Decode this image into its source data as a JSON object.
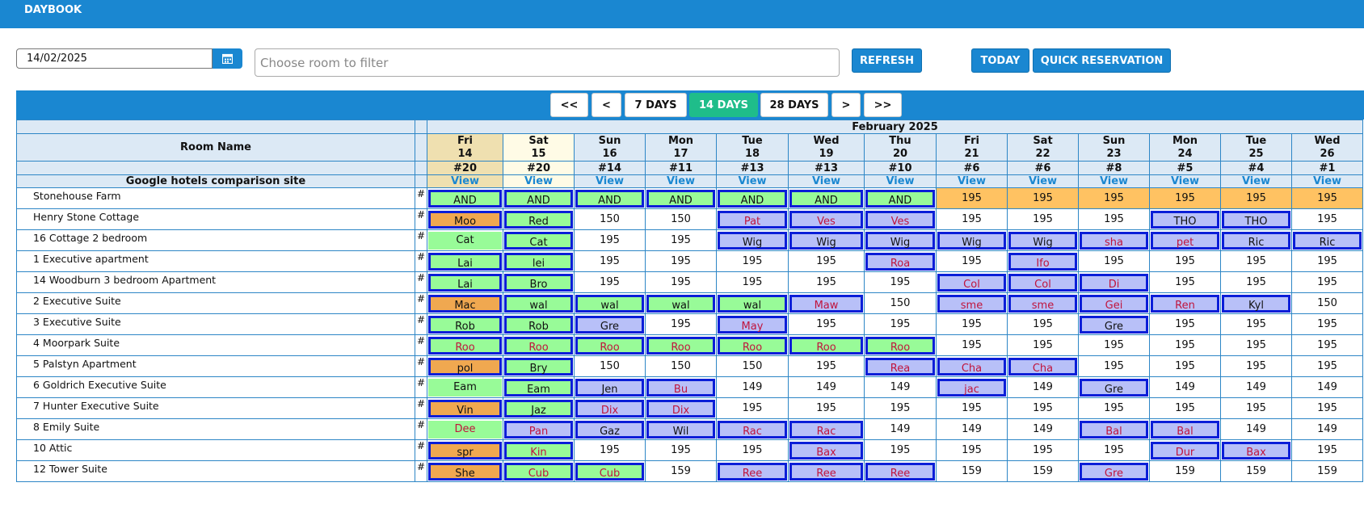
{
  "header": {
    "title": "DAYBOOK"
  },
  "toolbar": {
    "date_value": "14/02/2025",
    "room_filter_placeholder": "Choose room to filter",
    "refresh_label": "REFRESH",
    "today_label": "TODAY",
    "quick_reservation_label": "QUICK RESERVATION"
  },
  "nav": [
    {
      "label": "<<",
      "active": false
    },
    {
      "label": "<",
      "active": false
    },
    {
      "label": "7 DAYS",
      "active": false
    },
    {
      "label": "14 DAYS",
      "active": true
    },
    {
      "label": "28 DAYS",
      "active": false
    },
    {
      "label": ">",
      "active": false
    },
    {
      "label": ">>",
      "active": false
    }
  ],
  "grid": {
    "month_label": "February 2025",
    "room_name_header": "Room Name",
    "comparison_label": "Google hotels comparison site",
    "view_label": "View",
    "days": [
      {
        "dow": "Fri",
        "day": "14",
        "count": "#20"
      },
      {
        "dow": "Sat",
        "day": "15",
        "count": "#20"
      },
      {
        "dow": "Sun",
        "day": "16",
        "count": "#14"
      },
      {
        "dow": "Mon",
        "day": "17",
        "count": "#11"
      },
      {
        "dow": "Tue",
        "day": "18",
        "count": "#13"
      },
      {
        "dow": "Wed",
        "day": "19",
        "count": "#13"
      },
      {
        "dow": "Thu",
        "day": "20",
        "count": "#10"
      },
      {
        "dow": "Fri",
        "day": "21",
        "count": "#6"
      },
      {
        "dow": "Sat",
        "day": "22",
        "count": "#6"
      },
      {
        "dow": "Sun",
        "day": "23",
        "count": "#8"
      },
      {
        "dow": "Mon",
        "day": "24",
        "count": "#5"
      },
      {
        "dow": "Tue",
        "day": "25",
        "count": "#4"
      },
      {
        "dow": "Wed",
        "day": "26",
        "count": "#1"
      }
    ],
    "rooms": [
      {
        "name": "Stonehouse Farm",
        "cells": [
          {
            "t": "AND",
            "s": "green",
            "b": true
          },
          {
            "t": "AND",
            "s": "green",
            "b": true
          },
          {
            "t": "AND",
            "s": "green",
            "b": true
          },
          {
            "t": "AND",
            "s": "green",
            "b": true
          },
          {
            "t": "AND",
            "s": "green",
            "b": true
          },
          {
            "t": "AND",
            "s": "green",
            "b": true
          },
          {
            "t": "AND",
            "s": "green",
            "b": true
          },
          {
            "t": "195",
            "s": "orate"
          },
          {
            "t": "195",
            "s": "orate"
          },
          {
            "t": "195",
            "s": "orate"
          },
          {
            "t": "195",
            "s": "orate"
          },
          {
            "t": "195",
            "s": "orate"
          },
          {
            "t": "195",
            "s": "orate"
          }
        ]
      },
      {
        "name": "Henry Stone Cottage",
        "cells": [
          {
            "t": "Moo",
            "s": "orange",
            "b": true
          },
          {
            "t": "Red",
            "s": "green",
            "b": true
          },
          {
            "t": "150"
          },
          {
            "t": "150"
          },
          {
            "t": "Pat",
            "s": "blue",
            "b": true
          },
          {
            "t": "Ves",
            "s": "blue",
            "b": true
          },
          {
            "t": "Ves",
            "s": "blue",
            "b": true
          },
          {
            "t": "195"
          },
          {
            "t": "195"
          },
          {
            "t": "195"
          },
          {
            "t": "THO",
            "s": "bluedark",
            "b": true
          },
          {
            "t": "THO",
            "s": "bluedark",
            "b": true
          },
          {
            "t": "195"
          }
        ]
      },
      {
        "name": "16 Cottage 2 bedroom",
        "cells": [
          {
            "t": "Cat",
            "s": "green"
          },
          {
            "t": "Cat",
            "s": "green",
            "b": true
          },
          {
            "t": "195"
          },
          {
            "t": "195"
          },
          {
            "t": "Wig",
            "s": "bluedark",
            "b": true
          },
          {
            "t": "Wig",
            "s": "bluedark",
            "b": true
          },
          {
            "t": "Wig",
            "s": "bluedark",
            "b": true
          },
          {
            "t": "Wig",
            "s": "bluedark",
            "b": true
          },
          {
            "t": "Wig",
            "s": "bluedark",
            "b": true
          },
          {
            "t": "sha",
            "s": "blue",
            "b": true
          },
          {
            "t": "pet",
            "s": "blue",
            "b": true
          },
          {
            "t": "Ric",
            "s": "bluedark",
            "b": true
          },
          {
            "t": "Ric",
            "s": "bluedark",
            "b": true
          }
        ]
      },
      {
        "name": "1 Executive apartment",
        "cells": [
          {
            "t": "Lai",
            "s": "green",
            "b": true
          },
          {
            "t": "lei",
            "s": "green",
            "b": true
          },
          {
            "t": "195"
          },
          {
            "t": "195"
          },
          {
            "t": "195"
          },
          {
            "t": "195"
          },
          {
            "t": "Roa",
            "s": "blue",
            "b": true
          },
          {
            "t": "195"
          },
          {
            "t": "Ifo",
            "s": "blue",
            "b": true
          },
          {
            "t": "195"
          },
          {
            "t": "195"
          },
          {
            "t": "195"
          },
          {
            "t": "195"
          }
        ]
      },
      {
        "name": "14 Woodburn 3 bedroom Apartment",
        "cells": [
          {
            "t": "Lai",
            "s": "green",
            "b": true
          },
          {
            "t": "Bro",
            "s": "green",
            "b": true
          },
          {
            "t": "195"
          },
          {
            "t": "195"
          },
          {
            "t": "195"
          },
          {
            "t": "195"
          },
          {
            "t": "195"
          },
          {
            "t": "Col",
            "s": "blue",
            "b": true
          },
          {
            "t": "Col",
            "s": "blue",
            "b": true
          },
          {
            "t": "Di",
            "s": "blue",
            "b": true
          },
          {
            "t": "195"
          },
          {
            "t": "195"
          },
          {
            "t": "195"
          }
        ]
      },
      {
        "name": "2 Executive Suite",
        "cells": [
          {
            "t": "Mac",
            "s": "orange",
            "b": true
          },
          {
            "t": "wal",
            "s": "green",
            "b": true
          },
          {
            "t": "wal",
            "s": "green",
            "b": true
          },
          {
            "t": "wal",
            "s": "green",
            "b": true
          },
          {
            "t": "wal",
            "s": "green",
            "b": true
          },
          {
            "t": "Maw",
            "s": "blue",
            "b": true
          },
          {
            "t": "150"
          },
          {
            "t": "sme",
            "s": "blue",
            "b": true
          },
          {
            "t": "sme",
            "s": "blue",
            "b": true
          },
          {
            "t": "Gei",
            "s": "blue",
            "b": true
          },
          {
            "t": "Ren",
            "s": "blue",
            "b": true
          },
          {
            "t": "Kyl",
            "s": "bluedark",
            "b": true
          },
          {
            "t": "150"
          }
        ]
      },
      {
        "name": "3 Executive Suite",
        "cells": [
          {
            "t": "Rob",
            "s": "green",
            "b": true
          },
          {
            "t": "Rob",
            "s": "green",
            "b": true
          },
          {
            "t": "Gre",
            "s": "bluedark",
            "b": true
          },
          {
            "t": "195"
          },
          {
            "t": "May",
            "s": "blue",
            "b": true
          },
          {
            "t": "195"
          },
          {
            "t": "195"
          },
          {
            "t": "195"
          },
          {
            "t": "195"
          },
          {
            "t": "Gre",
            "s": "bluedark",
            "b": true
          },
          {
            "t": "195"
          },
          {
            "t": "195"
          },
          {
            "t": "195"
          }
        ]
      },
      {
        "name": "4 Moorpark Suite",
        "cells": [
          {
            "t": "Roo",
            "s": "greenred",
            "b": true
          },
          {
            "t": "Roo",
            "s": "greenred",
            "b": true
          },
          {
            "t": "Roo",
            "s": "greenred",
            "b": true
          },
          {
            "t": "Roo",
            "s": "greenred",
            "b": true
          },
          {
            "t": "Roo",
            "s": "greenred",
            "b": true
          },
          {
            "t": "Roo",
            "s": "greenred",
            "b": true
          },
          {
            "t": "Roo",
            "s": "greenred",
            "b": true
          },
          {
            "t": "195"
          },
          {
            "t": "195"
          },
          {
            "t": "195"
          },
          {
            "t": "195"
          },
          {
            "t": "195"
          },
          {
            "t": "195"
          }
        ]
      },
      {
        "name": "5 Palstyn Apartment",
        "cells": [
          {
            "t": "pol",
            "s": "orange",
            "b": true
          },
          {
            "t": "Bry",
            "s": "green",
            "b": true
          },
          {
            "t": "150"
          },
          {
            "t": "150"
          },
          {
            "t": "150"
          },
          {
            "t": "195"
          },
          {
            "t": "Rea",
            "s": "blue",
            "b": true
          },
          {
            "t": "Cha",
            "s": "blue",
            "b": true
          },
          {
            "t": "Cha",
            "s": "blue",
            "b": true
          },
          {
            "t": "195"
          },
          {
            "t": "195"
          },
          {
            "t": "195"
          },
          {
            "t": "195"
          }
        ]
      },
      {
        "name": "6 Goldrich Executive Suite",
        "cells": [
          {
            "t": "Eam",
            "s": "green"
          },
          {
            "t": "Eam",
            "s": "green",
            "b": true
          },
          {
            "t": "Jen",
            "s": "bluedark",
            "b": true
          },
          {
            "t": "Bu",
            "s": "blue",
            "b": true
          },
          {
            "t": "149"
          },
          {
            "t": "149"
          },
          {
            "t": "149"
          },
          {
            "t": "jac",
            "s": "blue",
            "b": true
          },
          {
            "t": "149"
          },
          {
            "t": "Gre",
            "s": "bluedark",
            "b": true
          },
          {
            "t": "149"
          },
          {
            "t": "149"
          },
          {
            "t": "149"
          }
        ]
      },
      {
        "name": "7 Hunter Executive Suite",
        "cells": [
          {
            "t": "Vin",
            "s": "orange",
            "b": true
          },
          {
            "t": "Jaz",
            "s": "green",
            "b": true
          },
          {
            "t": "Dix",
            "s": "blue",
            "b": true
          },
          {
            "t": "Dix",
            "s": "blue",
            "b": true
          },
          {
            "t": "195"
          },
          {
            "t": "195"
          },
          {
            "t": "195"
          },
          {
            "t": "195"
          },
          {
            "t": "195"
          },
          {
            "t": "195"
          },
          {
            "t": "195"
          },
          {
            "t": "195"
          },
          {
            "t": "195"
          }
        ]
      },
      {
        "name": "8 Emily Suite",
        "cells": [
          {
            "t": "Dee",
            "s": "greenred"
          },
          {
            "t": "Pan",
            "s": "blue",
            "b": true
          },
          {
            "t": "Gaz",
            "s": "bluedark",
            "b": true
          },
          {
            "t": "Wil",
            "s": "bluedark",
            "b": true
          },
          {
            "t": "Rac",
            "s": "blue",
            "b": true
          },
          {
            "t": "Rac",
            "s": "blue",
            "b": true
          },
          {
            "t": "149"
          },
          {
            "t": "149"
          },
          {
            "t": "149"
          },
          {
            "t": "Bal",
            "s": "blue",
            "b": true
          },
          {
            "t": "Bal",
            "s": "blue",
            "b": true
          },
          {
            "t": "149"
          },
          {
            "t": "149"
          }
        ]
      },
      {
        "name": "10 Attic",
        "cells": [
          {
            "t": "spr",
            "s": "orange",
            "b": true
          },
          {
            "t": "Kin",
            "s": "greenred",
            "b": true
          },
          {
            "t": "195"
          },
          {
            "t": "195"
          },
          {
            "t": "195"
          },
          {
            "t": "Bax",
            "s": "blue",
            "b": true
          },
          {
            "t": "195"
          },
          {
            "t": "195"
          },
          {
            "t": "195"
          },
          {
            "t": "195"
          },
          {
            "t": "Dur",
            "s": "blue",
            "b": true
          },
          {
            "t": "Bax",
            "s": "blue",
            "b": true
          },
          {
            "t": "195"
          }
        ]
      },
      {
        "name": "12 Tower Suite",
        "cells": [
          {
            "t": "She",
            "s": "orange",
            "b": true
          },
          {
            "t": "Cub",
            "s": "greenred",
            "b": true
          },
          {
            "t": "Cub",
            "s": "greenred",
            "b": true
          },
          {
            "t": "159"
          },
          {
            "t": "Ree",
            "s": "blue",
            "b": true
          },
          {
            "t": "Ree",
            "s": "blue",
            "b": true
          },
          {
            "t": "Ree",
            "s": "blue",
            "b": true
          },
          {
            "t": "159"
          },
          {
            "t": "159"
          },
          {
            "t": "Gre",
            "s": "blue",
            "b": true
          },
          {
            "t": "159"
          },
          {
            "t": "159"
          },
          {
            "t": "159"
          }
        ]
      }
    ]
  },
  "colors": {
    "brand": "#1a87d1",
    "active_tab": "#1fbd8a",
    "booking_green": "#98fb98",
    "booking_blue": "#b8c0f8",
    "booking_orange": "#f0a850",
    "rate_orange": "#ffc262"
  }
}
